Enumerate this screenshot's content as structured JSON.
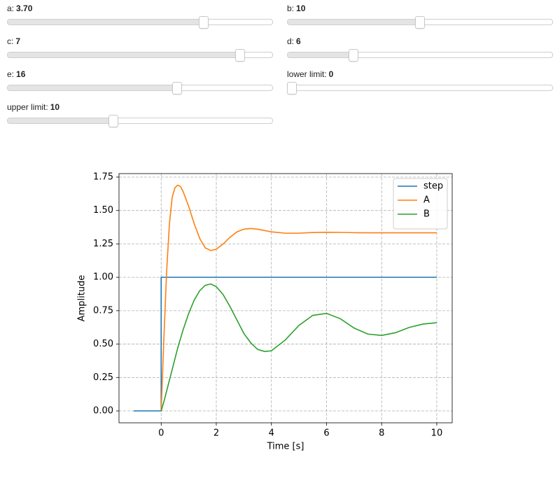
{
  "sliders": [
    {
      "label": "a:",
      "math": true,
      "value": 3.7,
      "value_label": "3.70",
      "range": [
        0,
        5
      ]
    },
    {
      "label": "b:",
      "math": true,
      "value": 10,
      "range": [
        0,
        20
      ]
    },
    {
      "label": "c:",
      "math": true,
      "value": 7,
      "range": [
        0,
        8
      ]
    },
    {
      "label": "d:",
      "math": true,
      "value": 6,
      "range": [
        1,
        21
      ]
    },
    {
      "label": "e:",
      "math": true,
      "value": 16,
      "range": [
        0,
        25
      ]
    },
    {
      "label": "lower limit:",
      "math": false,
      "value": 0,
      "range": [
        0,
        25
      ]
    },
    {
      "label": "upper limit:",
      "math": false,
      "value": 10,
      "range": [
        0,
        25
      ]
    }
  ],
  "chart_data": {
    "type": "line",
    "xlabel": "Time [s]",
    "ylabel": "Amplitude",
    "x": [
      -1,
      0,
      0,
      0.1,
      0.2,
      0.3,
      0.4,
      0.5,
      0.6,
      0.7,
      0.8,
      1.0,
      1.2,
      1.4,
      1.6,
      1.8,
      2.0,
      2.25,
      2.5,
      2.75,
      3.0,
      3.25,
      3.5,
      3.75,
      4.0,
      4.5,
      5,
      5.5,
      6,
      6.5,
      7,
      7.5,
      8,
      8.5,
      9,
      9.5,
      10
    ],
    "series": [
      {
        "name": "step",
        "color": "#1f77b4",
        "values": [
          0,
          0,
          1,
          1,
          1,
          1,
          1,
          1,
          1,
          1,
          1,
          1,
          1,
          1,
          1,
          1,
          1,
          1,
          1,
          1,
          1,
          1,
          1,
          1,
          1,
          1,
          1,
          1,
          1,
          1,
          1,
          1,
          1,
          1,
          1,
          1,
          1
        ]
      },
      {
        "name": "A",
        "color": "#ff7f0e",
        "values": [
          null,
          null,
          0,
          0.55,
          1.05,
          1.4,
          1.6,
          1.67,
          1.69,
          1.68,
          1.64,
          1.53,
          1.4,
          1.29,
          1.22,
          1.2,
          1.21,
          1.25,
          1.3,
          1.34,
          1.36,
          1.365,
          1.36,
          1.35,
          1.34,
          1.33,
          1.33,
          1.335,
          1.337,
          1.336,
          1.334,
          1.333,
          1.333,
          1.333,
          1.333,
          1.333,
          1.333
        ]
      },
      {
        "name": "B",
        "color": "#2ca02c",
        "values": [
          null,
          null,
          0,
          0.07,
          0.15,
          0.23,
          0.31,
          0.39,
          0.47,
          0.54,
          0.61,
          0.73,
          0.83,
          0.9,
          0.94,
          0.95,
          0.93,
          0.87,
          0.78,
          0.68,
          0.58,
          0.51,
          0.46,
          0.445,
          0.45,
          0.53,
          0.64,
          0.715,
          0.73,
          0.69,
          0.62,
          0.575,
          0.565,
          0.585,
          0.625,
          0.65,
          0.66
        ]
      }
    ],
    "xlim": [
      -1.53,
      10.56
    ],
    "ylim": [
      -0.089,
      1.776
    ],
    "xticks": [
      0,
      2,
      4,
      6,
      8,
      10
    ],
    "yticks": [
      {
        "value": 0,
        "label": "0.00"
      },
      {
        "value": 0.25,
        "label": "0.25"
      },
      {
        "value": 0.5,
        "label": "0.50"
      },
      {
        "value": 0.75,
        "label": "0.75"
      },
      {
        "value": 1,
        "label": "1.00"
      },
      {
        "value": 1.25,
        "label": "1.25"
      },
      {
        "value": 1.5,
        "label": "1.50"
      },
      {
        "value": 1.75,
        "label": "1.75"
      }
    ],
    "grid": true,
    "legend": "upper right"
  }
}
